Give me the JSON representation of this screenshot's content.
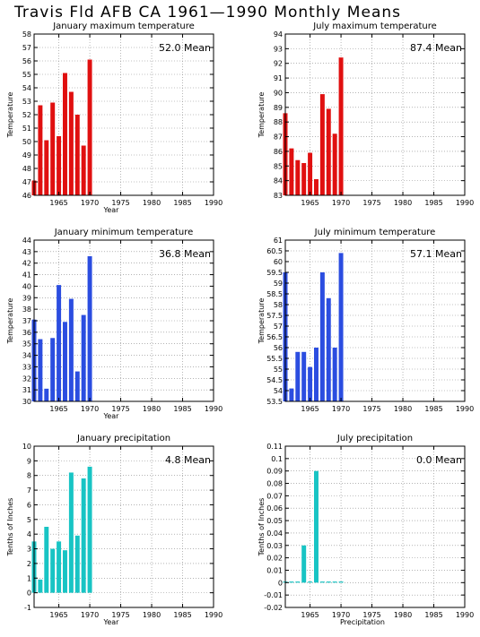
{
  "page": {
    "title": "Travis Fld AFB CA   1961—1990 Monthly Means"
  },
  "colors": {
    "red": "#e01010",
    "blue": "#2b4de0",
    "cyan": "#18c4c4",
    "grid": "#888888"
  },
  "chart_data": [
    {
      "type": "bar",
      "title": "January maximum temperature",
      "xlabel": "Year",
      "ylabel": "Temperature",
      "mean_label": "52.0  Mean",
      "color": "red",
      "xlim": [
        1961,
        1990
      ],
      "xticks": [
        "1965",
        "1970",
        "1975",
        "1980",
        "1985",
        "1990"
      ],
      "ylim": [
        46,
        58
      ],
      "yticks": [
        "46",
        "47",
        "48",
        "49",
        "50",
        "51",
        "52",
        "53",
        "54",
        "55",
        "56",
        "57",
        "58"
      ],
      "x": [
        1961,
        1962,
        1963,
        1964,
        1965,
        1966,
        1967,
        1968,
        1969,
        1970
      ],
      "values": [
        47.1,
        52.7,
        50.1,
        52.9,
        50.4,
        55.1,
        53.7,
        52.0,
        49.7,
        56.1
      ],
      "grid": true
    },
    {
      "type": "bar",
      "title": "July maximum temperature",
      "xlabel": "",
      "ylabel": "Temperature",
      "mean_label": "87.4  Mean",
      "color": "red",
      "xlim": [
        1961,
        1990
      ],
      "xticks": [
        "1965",
        "1970",
        "1975",
        "1980",
        "1985",
        "1990"
      ],
      "ylim": [
        83,
        94
      ],
      "yticks": [
        "83",
        "84",
        "85",
        "86",
        "87",
        "88",
        "89",
        "90",
        "91",
        "92",
        "93",
        "94"
      ],
      "x": [
        1961,
        1962,
        1963,
        1964,
        1965,
        1966,
        1967,
        1968,
        1969,
        1970
      ],
      "values": [
        88.6,
        86.2,
        85.4,
        85.2,
        85.9,
        84.1,
        89.9,
        88.9,
        87.2,
        92.4
      ],
      "grid": true
    },
    {
      "type": "bar",
      "title": "January minimum temperature",
      "xlabel": "Year",
      "ylabel": "Temperature",
      "mean_label": "36.8  Mean",
      "color": "blue",
      "xlim": [
        1961,
        1990
      ],
      "xticks": [
        "1965",
        "1970",
        "1975",
        "1980",
        "1985",
        "1990"
      ],
      "ylim": [
        30,
        44
      ],
      "yticks": [
        "30",
        "31",
        "32",
        "33",
        "34",
        "35",
        "36",
        "37",
        "38",
        "39",
        "40",
        "41",
        "42",
        "43",
        "44"
      ],
      "x": [
        1961,
        1962,
        1963,
        1964,
        1965,
        1966,
        1967,
        1968,
        1969,
        1970
      ],
      "values": [
        37.1,
        35.4,
        31.1,
        35.5,
        40.1,
        36.9,
        38.9,
        32.6,
        37.5,
        42.6
      ],
      "grid": true
    },
    {
      "type": "bar",
      "title": "July minimum temperature",
      "xlabel": "",
      "ylabel": "Temperature",
      "mean_label": "57.1  Mean",
      "color": "blue",
      "xlim": [
        1961,
        1990
      ],
      "xticks": [
        "1965",
        "1970",
        "1975",
        "1980",
        "1985",
        "1990"
      ],
      "ylim": [
        53.5,
        61
      ],
      "yticks": [
        "53.5",
        "54",
        "54.5",
        "55",
        "55.5",
        "56",
        "56.5",
        "57",
        "57.5",
        "58",
        "58.5",
        "59",
        "59.5",
        "60",
        "60.5",
        "61"
      ],
      "x": [
        1961,
        1962,
        1963,
        1964,
        1965,
        1966,
        1967,
        1968,
        1969,
        1970
      ],
      "values": [
        59.5,
        54.1,
        55.8,
        55.8,
        55.1,
        56.0,
        59.5,
        58.3,
        56.0,
        60.4
      ],
      "grid": true
    },
    {
      "type": "bar",
      "title": "January precipitation",
      "xlabel": "Year",
      "ylabel": "Tenths of Inches",
      "mean_label": "4.8  Mean",
      "color": "cyan",
      "xlim": [
        1961,
        1990
      ],
      "xticks": [
        "1965",
        "1970",
        "1975",
        "1980",
        "1985",
        "1990"
      ],
      "ylim": [
        -1,
        10
      ],
      "yticks": [
        "-1",
        "0",
        "1",
        "2",
        "3",
        "4",
        "5",
        "6",
        "7",
        "8",
        "9",
        "10"
      ],
      "x": [
        1961,
        1962,
        1963,
        1964,
        1965,
        1966,
        1967,
        1968,
        1969,
        1970
      ],
      "values": [
        3.5,
        0.9,
        4.5,
        3.0,
        3.5,
        2.9,
        8.2,
        3.9,
        7.8,
        8.6
      ],
      "grid": true
    },
    {
      "type": "bar",
      "title": "July precipitation",
      "xlabel": "Precipitation",
      "ylabel": "Tenths of Inches",
      "mean_label": "0.0  Mean",
      "color": "cyan",
      "xlim": [
        1961,
        1990
      ],
      "xticks": [
        "1965",
        "1970",
        "1975",
        "1980",
        "1985",
        "1990"
      ],
      "ylim": [
        -0.02,
        0.11
      ],
      "yticks": [
        "-0.02",
        "-0.01",
        "0",
        "0.01",
        "0.02",
        "0.03",
        "0.04",
        "0.05",
        "0.06",
        "0.07",
        "0.08",
        "0.09",
        "0.1",
        "0.11"
      ],
      "x": [
        1961,
        1962,
        1963,
        1964,
        1965,
        1966,
        1967,
        1968,
        1969,
        1970
      ],
      "values": [
        0,
        0,
        0,
        0.03,
        0,
        0.09,
        0,
        0,
        0,
        0
      ],
      "grid": true
    }
  ]
}
